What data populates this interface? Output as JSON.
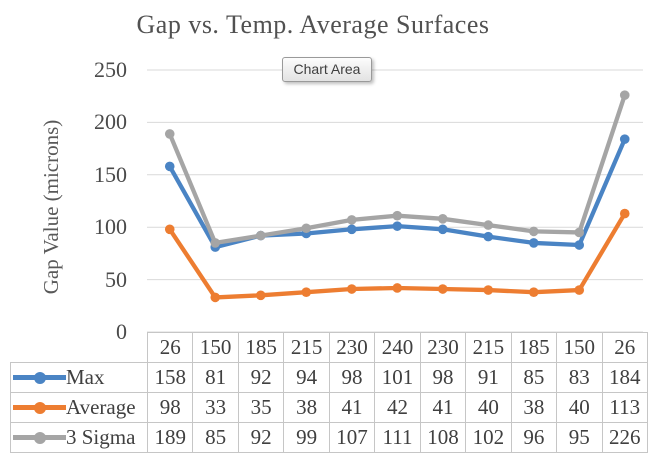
{
  "chart_data": {
    "type": "line",
    "title": "Gap vs. Temp. Average Surfaces",
    "ylabel": "Gap Value (microns)",
    "xlabel": "",
    "categories": [
      "26",
      "150",
      "185",
      "215",
      "230",
      "240",
      "230",
      "215",
      "185",
      "150",
      "26"
    ],
    "series": [
      {
        "name": "Max",
        "color": "#4A84C4",
        "values": [
          158,
          81,
          92,
          94,
          98,
          101,
          98,
          91,
          85,
          83,
          184
        ]
      },
      {
        "name": "Average",
        "color": "#ED7D31",
        "values": [
          98,
          33,
          35,
          38,
          41,
          42,
          41,
          40,
          38,
          40,
          113
        ]
      },
      {
        "name": "3 Sigma",
        "color": "#A5A5A5",
        "values": [
          189,
          85,
          92,
          99,
          107,
          111,
          108,
          102,
          96,
          95,
          226
        ]
      }
    ],
    "ylim": [
      0,
      250
    ],
    "y_ticks": [
      0,
      50,
      100,
      150,
      200,
      250
    ],
    "grid": true,
    "marker": "circle",
    "legend_position": "data-table-left",
    "gridline_color": "#D9D9D9",
    "table_border_color": "#C6C6C6",
    "text_color": "#4A4A4A"
  },
  "tooltip": {
    "label": "Chart Area"
  }
}
